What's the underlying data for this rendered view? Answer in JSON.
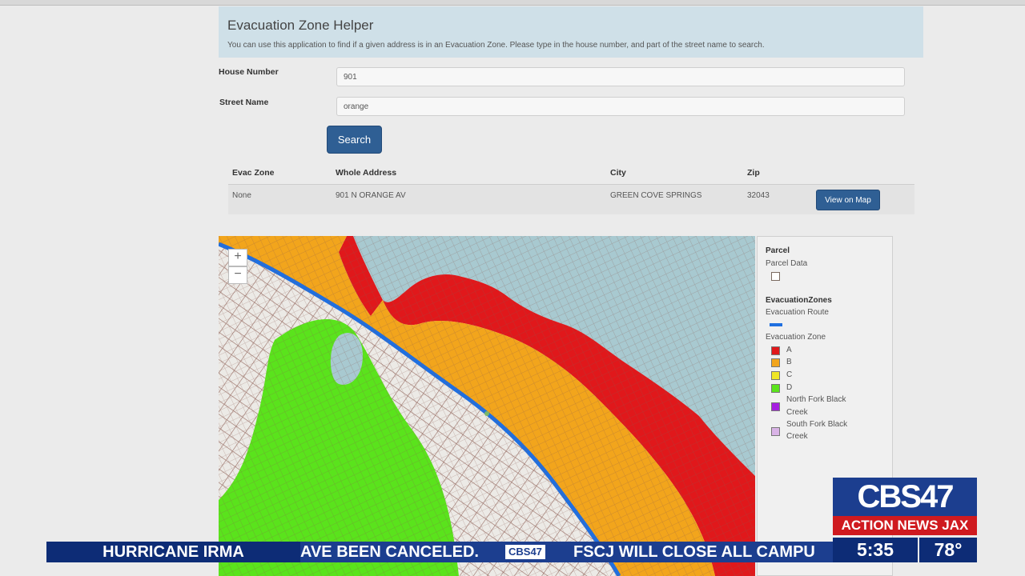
{
  "app": {
    "title": "Evacuation Zone Helper",
    "description": "You can use this application to find if a given address is in an Evacuation Zone. Please type in the house number, and part of the street name to search."
  },
  "form": {
    "house_number_label": "House Number",
    "house_number_value": "901",
    "street_name_label": "Street Name",
    "street_name_value": "orange",
    "search_label": "Search"
  },
  "results": {
    "columns": [
      "Evac Zone",
      "Whole Address",
      "City",
      "Zip"
    ],
    "rows": [
      {
        "evac_zone": "None",
        "address": "901 N ORANGE AV",
        "city": "GREEN COVE SPRINGS",
        "zip": "32043",
        "action": "View on Map"
      }
    ]
  },
  "map": {
    "zoom_in": "+",
    "zoom_out": "−"
  },
  "legend": {
    "parcel_title": "Parcel",
    "parcel_sub": "Parcel Data",
    "evac_title": "EvacuationZones",
    "route_label": "Evacuation Route",
    "zone_label": "Evacuation Zone",
    "items": [
      {
        "label": "A",
        "color": "#e0181b"
      },
      {
        "label": "B",
        "color": "#f2a51c"
      },
      {
        "label": "C",
        "color": "#efe626"
      },
      {
        "label": "D",
        "color": "#5ae31c"
      },
      {
        "label": "North Fork Black Creek",
        "line1": "North Fork Black",
        "line2": "Creek",
        "color": "#a51ee0"
      },
      {
        "label": "South Fork Black Creek",
        "line1": "South Fork Black",
        "line2": "Creek",
        "color": "#d9b3e6"
      }
    ],
    "route_color": "#1f6fe0"
  },
  "broadcast": {
    "tag": "HURRICANE IRMA",
    "ticker_1": "AVE BEEN CANCELED.",
    "ticker_logo": "CBS47",
    "ticker_2": "FSCJ WILL CLOSE ALL CAMPU",
    "station_logo": "CBS47",
    "station_name": "ACTION NEWS JAX",
    "time": "5:35",
    "temperature": "78°"
  }
}
